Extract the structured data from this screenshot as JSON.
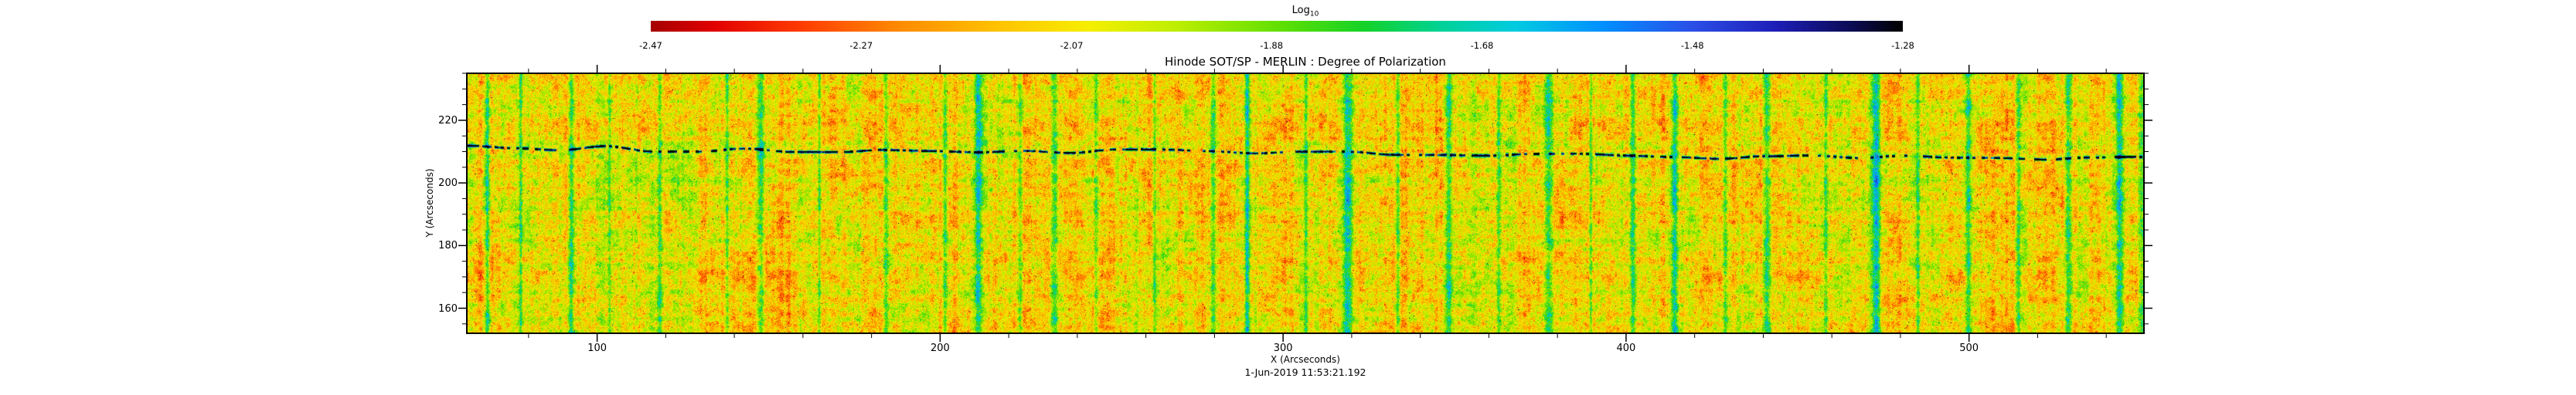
{
  "figure": {
    "title": "Hinode SOT/SP - MERLIN : Degree of Polarization",
    "timestamp": "1-Jun-2019 11:53:21.192",
    "xlabel": "X (Arcseconds)",
    "ylabel": "Y (Arcseconds)"
  },
  "colorbar": {
    "label_main": "Log",
    "label_sub": "10",
    "tick_labels": [
      "-2.47",
      "-2.27",
      "-2.07",
      "-1.88",
      "-1.68",
      "-1.48",
      "-1.28"
    ],
    "value_range": [
      -2.47,
      -1.28
    ]
  },
  "chart_data": {
    "type": "heatmap",
    "title": "Hinode SOT/SP - MERLIN : Degree of Polarization",
    "xlabel": "X (Arcseconds)",
    "ylabel": "Y (Arcseconds)",
    "value_label": "Log10 Degree of Polarization",
    "value_range": [
      -2.47,
      -1.28
    ],
    "xlim": [
      62,
      551
    ],
    "ylim": [
      152,
      235
    ],
    "x_ticks": [
      100,
      200,
      300,
      400,
      500
    ],
    "y_ticks": [
      160,
      180,
      200,
      220
    ],
    "x_minor_step": 20,
    "y_minor_step": 5,
    "timestamp": "1-Jun-2019 11:53:21.192",
    "colormap_stops": [
      {
        "t": 0.0,
        "c": "#a50000"
      },
      {
        "t": 0.05,
        "c": "#e10000"
      },
      {
        "t": 0.12,
        "c": "#ff3b00"
      },
      {
        "t": 0.2,
        "c": "#ff8c00"
      },
      {
        "t": 0.28,
        "c": "#ffc400"
      },
      {
        "t": 0.35,
        "c": "#f6ee00"
      },
      {
        "t": 0.42,
        "c": "#bdee00"
      },
      {
        "t": 0.5,
        "c": "#63e000"
      },
      {
        "t": 0.57,
        "c": "#14d228"
      },
      {
        "t": 0.63,
        "c": "#00d295"
      },
      {
        "t": 0.69,
        "c": "#00cbe0"
      },
      {
        "t": 0.76,
        "c": "#0090ff"
      },
      {
        "t": 0.83,
        "c": "#2b50e8"
      },
      {
        "t": 0.9,
        "c": "#1d1db6"
      },
      {
        "t": 0.96,
        "c": "#0b0b52"
      },
      {
        "t": 1.0,
        "c": "#000000"
      }
    ],
    "noise_seed": 20190601,
    "base_level": 0.34,
    "green_streaks": [
      [
        0.012,
        0.26,
        3
      ],
      [
        0.032,
        0.18,
        2
      ],
      [
        0.062,
        0.22,
        4
      ],
      [
        0.085,
        0.14,
        2
      ],
      [
        0.115,
        0.18,
        3
      ],
      [
        0.155,
        0.2,
        2
      ],
      [
        0.175,
        0.25,
        5
      ],
      [
        0.21,
        0.15,
        2
      ],
      [
        0.25,
        0.18,
        3
      ],
      [
        0.285,
        0.22,
        3
      ],
      [
        0.305,
        0.25,
        6
      ],
      [
        0.33,
        0.2,
        3
      ],
      [
        0.35,
        0.28,
        5
      ],
      [
        0.375,
        0.2,
        3
      ],
      [
        0.41,
        0.15,
        2
      ],
      [
        0.445,
        0.22,
        4
      ],
      [
        0.465,
        0.25,
        3
      ],
      [
        0.5,
        0.2,
        3
      ],
      [
        0.525,
        0.3,
        6
      ],
      [
        0.555,
        0.22,
        3
      ],
      [
        0.585,
        0.25,
        4
      ],
      [
        0.615,
        0.2,
        3
      ],
      [
        0.645,
        0.28,
        5
      ],
      [
        0.67,
        0.2,
        2
      ],
      [
        0.695,
        0.25,
        4
      ],
      [
        0.72,
        0.3,
        5
      ],
      [
        0.75,
        0.2,
        3
      ],
      [
        0.775,
        0.25,
        4
      ],
      [
        0.81,
        0.18,
        3
      ],
      [
        0.84,
        0.3,
        6
      ],
      [
        0.865,
        0.22,
        3
      ],
      [
        0.895,
        0.25,
        4
      ],
      [
        0.925,
        0.2,
        3
      ],
      [
        0.955,
        0.28,
        4
      ],
      [
        0.985,
        0.32,
        5
      ]
    ],
    "dark_band": {
      "y_frac": 0.285,
      "slope_frac": 0.045,
      "style": "dark dotted scan artifact"
    },
    "description": "Granular solar polarization map: predominantly yellow-orange speckled field with vertical green low-polarization streaks and a dark dotted horizontal scan artifact near y = 205 arcsec."
  }
}
